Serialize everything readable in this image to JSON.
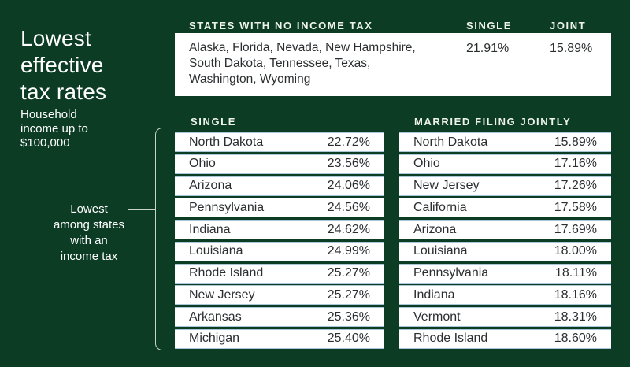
{
  "colors": {
    "background": "#0d3c25",
    "card": "#ffffff",
    "row_separator": "#a9c7d9",
    "header_text": "#eef3ec",
    "body_text": "#2b2e30",
    "bracket_line": "#c9d3c9"
  },
  "sidebar": {
    "title_lines": [
      "Lowest",
      "effective",
      "tax rates"
    ],
    "subtitle_lines": [
      "Household",
      "income up to",
      "$100,000"
    ],
    "bracket_label_lines": [
      "Lowest",
      "among states",
      "with an",
      "income tax"
    ]
  },
  "no_tax_table": {
    "title": "STATES WITH NO INCOME TAX",
    "col_single": "SINGLE",
    "col_joint": "JOINT",
    "states_lines": [
      "Alaska, Florida, Nevada, New Hampshire,",
      "South Dakota, Tennessee, Texas,",
      "Washington, Wyoming"
    ],
    "single_rate": "21.91%",
    "joint_rate": "15.89%"
  },
  "single_table": {
    "header": "SINGLE",
    "rows": [
      {
        "state": "North Dakota",
        "rate": "22.72%"
      },
      {
        "state": "Ohio",
        "rate": "23.56%"
      },
      {
        "state": "Arizona",
        "rate": "24.06%"
      },
      {
        "state": "Pennsylvania",
        "rate": "24.56%"
      },
      {
        "state": "Indiana",
        "rate": "24.62%"
      },
      {
        "state": "Louisiana",
        "rate": "24.99%"
      },
      {
        "state": "Rhode Island",
        "rate": "25.27%"
      },
      {
        "state": "New Jersey",
        "rate": "25.27%"
      },
      {
        "state": "Arkansas",
        "rate": "25.36%"
      },
      {
        "state": "Michigan",
        "rate": "25.40%"
      }
    ]
  },
  "married_table": {
    "header": "MARRIED FILING JOINTLY",
    "rows": [
      {
        "state": "North Dakota",
        "rate": "15.89%"
      },
      {
        "state": "Ohio",
        "rate": "17.16%"
      },
      {
        "state": "New Jersey",
        "rate": "17.26%"
      },
      {
        "state": "California",
        "rate": "17.58%"
      },
      {
        "state": "Arizona",
        "rate": "17.69%"
      },
      {
        "state": "Louisiana",
        "rate": "18.00%"
      },
      {
        "state": "Pennsylvania",
        "rate": "18.11%"
      },
      {
        "state": "Indiana",
        "rate": "18.16%"
      },
      {
        "state": "Vermont",
        "rate": "18.31%"
      },
      {
        "state": "Rhode Island",
        "rate": "18.60%"
      }
    ]
  },
  "chart_data": [
    {
      "type": "table",
      "title": "STATES WITH NO INCOME TAX",
      "columns": [
        "States",
        "Single",
        "Joint"
      ],
      "rows": [
        [
          "Alaska, Florida, Nevada, New Hampshire, South Dakota, Tennessee, Texas, Washington, Wyoming",
          "21.91%",
          "15.89%"
        ]
      ]
    },
    {
      "type": "table",
      "title": "SINGLE",
      "columns": [
        "State",
        "Effective tax rate"
      ],
      "rows": [
        [
          "North Dakota",
          22.72
        ],
        [
          "Ohio",
          23.56
        ],
        [
          "Arizona",
          24.06
        ],
        [
          "Pennsylvania",
          24.56
        ],
        [
          "Indiana",
          24.62
        ],
        [
          "Louisiana",
          24.99
        ],
        [
          "Rhode Island",
          25.27
        ],
        [
          "New Jersey",
          25.27
        ],
        [
          "Arkansas",
          25.36
        ],
        [
          "Michigan",
          25.4
        ]
      ]
    },
    {
      "type": "table",
      "title": "MARRIED FILING JOINTLY",
      "columns": [
        "State",
        "Effective tax rate"
      ],
      "rows": [
        [
          "North Dakota",
          15.89
        ],
        [
          "Ohio",
          17.16
        ],
        [
          "New Jersey",
          17.26
        ],
        [
          "California",
          17.58
        ],
        [
          "Arizona",
          17.69
        ],
        [
          "Louisiana",
          18.0
        ],
        [
          "Pennsylvania",
          18.11
        ],
        [
          "Indiana",
          18.16
        ],
        [
          "Vermont",
          18.31
        ],
        [
          "Rhode Island",
          18.6
        ]
      ]
    }
  ]
}
